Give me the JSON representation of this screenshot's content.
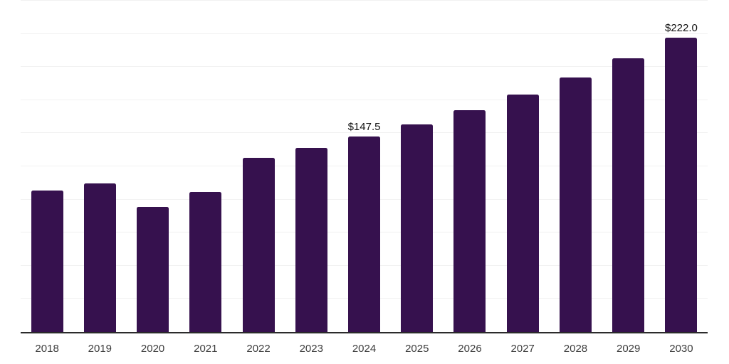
{
  "chart_data": {
    "type": "bar",
    "title": "",
    "xlabel": "",
    "ylabel": "",
    "categories": [
      "2018",
      "2019",
      "2020",
      "2021",
      "2022",
      "2023",
      "2024",
      "2025",
      "2026",
      "2027",
      "2028",
      "2029",
      "2030"
    ],
    "values": [
      106.9,
      112.1,
      94.4,
      105.6,
      131.2,
      139.0,
      147.5,
      156.7,
      167.3,
      179.0,
      191.9,
      206.3,
      222.0
    ],
    "data_labels": [
      "",
      "",
      "",
      "",
      "",
      "",
      "$147.5",
      "",
      "",
      "",
      "",
      "",
      "$222.0"
    ],
    "ylim": [
      0,
      250
    ],
    "gridline_step": 25,
    "grid": "horizontal-only",
    "y_tick_labels_visible": false,
    "legend": "none",
    "colors": {
      "bar": "#36114e",
      "gridline": "#f1f1f1",
      "axis_line": "#2b2b2b",
      "tick_label": "#3c3c3c",
      "data_label": "#111111",
      "background": "#ffffff"
    }
  }
}
